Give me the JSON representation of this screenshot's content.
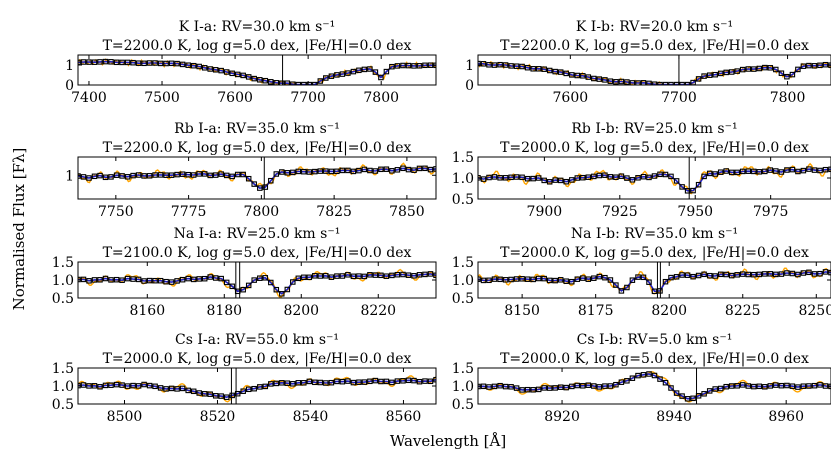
{
  "figure": {
    "ylabel": "Normalised Flux [Fλ]",
    "xlabel": "Wavelength [Å]",
    "model_color": "#ffa500",
    "obs_color": "#1f1fbf",
    "marker_color": "#000000"
  },
  "chart_data": [
    {
      "type": "line",
      "line": "K I-a",
      "title_rv": "K I-a:  RV=30.0 km s⁻¹",
      "title_params": "T=2200.0 K,  log g=5.0 dex,  |Fe/H|=0.0 dex",
      "xlim": [
        7385,
        7875
      ],
      "ylim": [
        0,
        1.5
      ],
      "xticks": [
        7400,
        7500,
        7600,
        7700,
        7800
      ],
      "yticks": [
        0,
        1
      ],
      "ytick_labels": [
        "0",
        "1"
      ],
      "marker_lines": [
        7665
      ],
      "features": [
        {
          "c": 7670,
          "d": 0.95,
          "w": 65
        },
        {
          "c": 7699,
          "d": 0.6,
          "w": 10
        },
        {
          "c": 7800,
          "d": 0.55,
          "w": 6
        }
      ],
      "continuum": [
        1.15,
        1.0
      ]
    },
    {
      "type": "line",
      "line": "K I-b",
      "title_rv": "K I-b:  RV=20.0 km s⁻¹",
      "title_params": "T=2200.0 K,  log g=5.0 dex,  |Fe/H|=0.0 dex",
      "xlim": [
        7515,
        7840
      ],
      "ylim": [
        0,
        1.5
      ],
      "xticks": [
        7600,
        7700,
        7800
      ],
      "yticks": [
        0,
        1
      ],
      "ytick_labels": [
        "0",
        "1"
      ],
      "marker_lines": [
        7700
      ],
      "features": [
        {
          "c": 7665,
          "d": 0.95,
          "w": 60
        },
        {
          "c": 7699,
          "d": 0.55,
          "w": 10
        },
        {
          "c": 7800,
          "d": 0.55,
          "w": 6
        }
      ],
      "continuum": [
        1.1,
        1.0
      ]
    },
    {
      "type": "line",
      "line": "Rb I-a",
      "title_rv": "Rb I-a:  RV=35.0 km s⁻¹",
      "title_params": "T=2200.0 K,  log g=5.0 dex,  |Fe/H|=0.0 dex",
      "xlim": [
        7737,
        7860
      ],
      "ylim": [
        0.35,
        1.5
      ],
      "xticks": [
        7750,
        7775,
        7800,
        7825,
        7850
      ],
      "yticks": [
        1
      ],
      "ytick_labels": [
        "1"
      ],
      "marker_lines": [
        7801
      ],
      "features": [
        {
          "c": 7800,
          "d": 0.45,
          "w": 2.5
        },
        {
          "c": 7790,
          "d": 0.05,
          "w": 5
        }
      ],
      "continuum": [
        0.95,
        1.18
      ]
    },
    {
      "type": "line",
      "line": "Rb I-b",
      "title_rv": "Rb I-b:  RV=25.0 km s⁻¹",
      "title_params": "T=2000.0 K,  log g=5.0 dex,  |Fe/H|=0.0 dex",
      "xlim": [
        7878,
        7995
      ],
      "ylim": [
        0.5,
        1.5
      ],
      "xticks": [
        7900,
        7925,
        7950,
        7975
      ],
      "yticks": [
        0.5,
        1.0,
        1.5
      ],
      "ytick_labels": [
        "0.5",
        "1.0",
        "1.5"
      ],
      "marker_lines": [
        7948
      ],
      "features": [
        {
          "c": 7948,
          "d": 0.45,
          "w": 3
        },
        {
          "c": 7905,
          "d": 0.12,
          "w": 6
        },
        {
          "c": 7930,
          "d": 0.1,
          "w": 5
        }
      ],
      "continuum": [
        1.0,
        1.2
      ]
    },
    {
      "type": "line",
      "line": "Na I-a",
      "title_rv": "Na I-a:  RV=25.0 km s⁻¹",
      "title_params": "T=2100.0 K,  log g=5.0 dex,  |Fe/H|=0.0 dex",
      "xlim": [
        8142,
        8235
      ],
      "ylim": [
        0.5,
        1.5
      ],
      "xticks": [
        8160,
        8180,
        8200,
        8220
      ],
      "yticks": [
        0.5,
        1.0,
        1.5
      ],
      "ytick_labels": [
        "0.5",
        "1.0",
        "1.5"
      ],
      "marker_lines": [
        8183,
        8184
      ],
      "features": [
        {
          "c": 8184,
          "d": 0.4,
          "w": 2
        },
        {
          "c": 8195,
          "d": 0.45,
          "w": 2
        },
        {
          "c": 8165,
          "d": 0.08,
          "w": 4
        }
      ],
      "continuum": [
        1.0,
        1.15
      ]
    },
    {
      "type": "line",
      "line": "Na I-b",
      "title_rv": "Na I-b:  RV=35.0 km s⁻¹",
      "title_params": "T=2000.0 K,  log g=5.0 dex,  |Fe/H|=0.0 dex",
      "xlim": [
        8135,
        8255
      ],
      "ylim": [
        0.5,
        1.5
      ],
      "xticks": [
        8150,
        8175,
        8200,
        8225,
        8250
      ],
      "yticks": [
        0.5,
        1.0,
        1.5
      ],
      "ytick_labels": [
        "0.5",
        "1.0",
        "1.5"
      ],
      "marker_lines": [
        8196,
        8197
      ],
      "features": [
        {
          "c": 8184,
          "d": 0.4,
          "w": 2
        },
        {
          "c": 8196,
          "d": 0.45,
          "w": 2
        },
        {
          "c": 8165,
          "d": 0.08,
          "w": 4
        }
      ],
      "continuum": [
        1.0,
        1.2
      ]
    },
    {
      "type": "line",
      "line": "Cs I-a",
      "title_rv": "Cs I-a:  RV=55.0 km s⁻¹",
      "title_params": "T=2000.0 K,  log g=5.0 dex,  |Fe/H|=0.0 dex",
      "xlim": [
        8490,
        8567
      ],
      "ylim": [
        0.5,
        1.5
      ],
      "xticks": [
        8500,
        8520,
        8540,
        8560
      ],
      "yticks": [
        0.5,
        1.0,
        1.5
      ],
      "ytick_labels": [
        "0.5",
        "1.0",
        "1.5"
      ],
      "marker_lines": [
        8523,
        8524
      ],
      "features": [
        {
          "c": 8521,
          "d": 0.35,
          "w": 5
        },
        {
          "c": 8510,
          "d": 0.08,
          "w": 3
        }
      ],
      "continuum": [
        1.0,
        1.15
      ]
    },
    {
      "type": "line",
      "line": "Cs I-b",
      "title_rv": "Cs I-b:  RV=5.0 km s⁻¹",
      "title_params": "T=2000.0 K,  log g=5.0 dex,  |Fe/H|=0.0 dex",
      "xlim": [
        8905,
        8968
      ],
      "ylim": [
        0.5,
        1.5
      ],
      "xticks": [
        8920,
        8940,
        8960
      ],
      "yticks": [
        0.5,
        1.0,
        1.5
      ],
      "ytick_labels": [
        "0.5",
        "1.0",
        "1.5"
      ],
      "marker_lines": [
        8944
      ],
      "features": [
        {
          "c": 8943,
          "d": 0.35,
          "w": 2.5
        },
        {
          "c": 8935,
          "d": -0.35,
          "w": 2.5
        },
        {
          "c": 8915,
          "d": 0.1,
          "w": 3
        }
      ],
      "continuum": [
        1.0,
        1.0
      ]
    }
  ]
}
